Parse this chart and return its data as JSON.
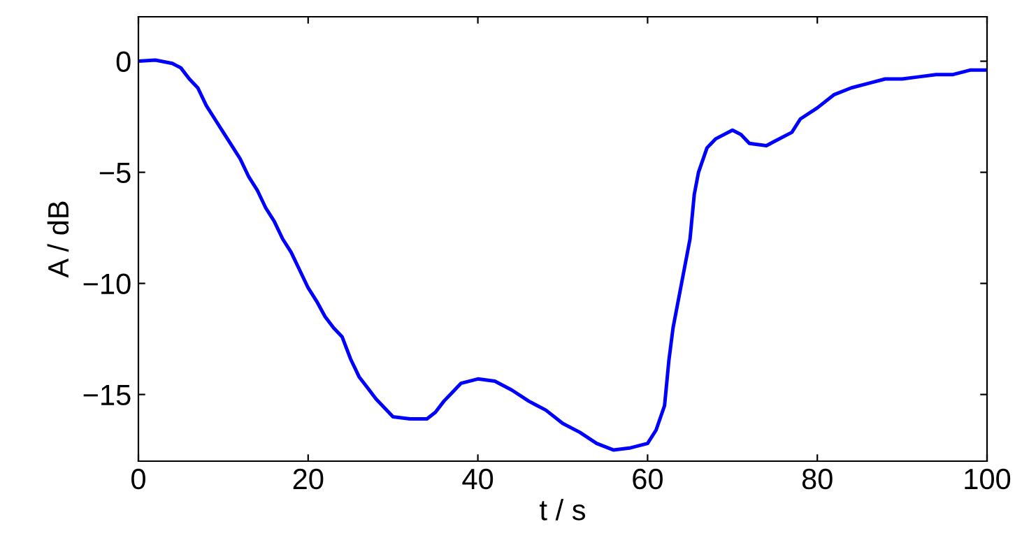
{
  "chart_data": {
    "type": "line",
    "xlabel": "t / s",
    "ylabel": "A / dB",
    "series": [
      {
        "color": "#0000ff",
        "x": [
          0,
          2,
          4,
          5,
          6,
          7,
          8,
          9,
          10,
          11,
          12,
          13,
          14,
          15,
          16,
          17,
          18,
          19,
          20,
          21,
          22,
          23,
          24,
          25,
          26,
          27,
          28,
          29,
          30,
          32,
          34,
          35,
          36,
          37,
          38,
          40,
          42,
          44,
          46,
          48,
          50,
          52,
          54,
          56,
          58,
          60,
          61,
          62,
          62.5,
          63,
          64,
          65,
          65.5,
          66,
          67,
          68,
          70,
          71,
          72,
          74,
          75,
          77,
          78,
          80,
          82,
          84,
          86,
          88,
          90,
          92,
          94,
          96,
          98,
          100
        ],
        "values": [
          0,
          0.05,
          -0.1,
          -0.3,
          -0.8,
          -1.2,
          -2,
          -2.6,
          -3.2,
          -3.8,
          -4.4,
          -5.2,
          -5.8,
          -6.6,
          -7.2,
          -8,
          -8.6,
          -9.4,
          -10.2,
          -10.8,
          -11.5,
          -12,
          -12.4,
          -13.4,
          -14.2,
          -14.7,
          -15.2,
          -15.6,
          -16,
          -16.1,
          -16.1,
          -15.8,
          -15.3,
          -14.9,
          -14.5,
          -14.3,
          -14.4,
          -14.8,
          -15.3,
          -15.7,
          -16.3,
          -16.7,
          -17.2,
          -17.5,
          -17.4,
          -17.2,
          -16.6,
          -15.5,
          -13.5,
          -12,
          -10,
          -8,
          -6,
          -5,
          -3.9,
          -3.5,
          -3.1,
          -3.3,
          -3.7,
          -3.8,
          -3.6,
          -3.2,
          -2.6,
          -2.1,
          -1.5,
          -1.2,
          -1.0,
          -0.8,
          -0.8,
          -0.7,
          -0.6,
          -0.6,
          -0.4,
          -0.4
        ]
      }
    ],
    "xlim": [
      0,
      100
    ],
    "xticks": [
      0,
      20,
      40,
      60,
      80,
      100
    ],
    "ylim": [
      -18,
      2
    ],
    "yticks": [
      -15,
      -10,
      -5,
      0
    ],
    "grid": false,
    "legend": false,
    "marker": "none",
    "line_style": "solid"
  }
}
